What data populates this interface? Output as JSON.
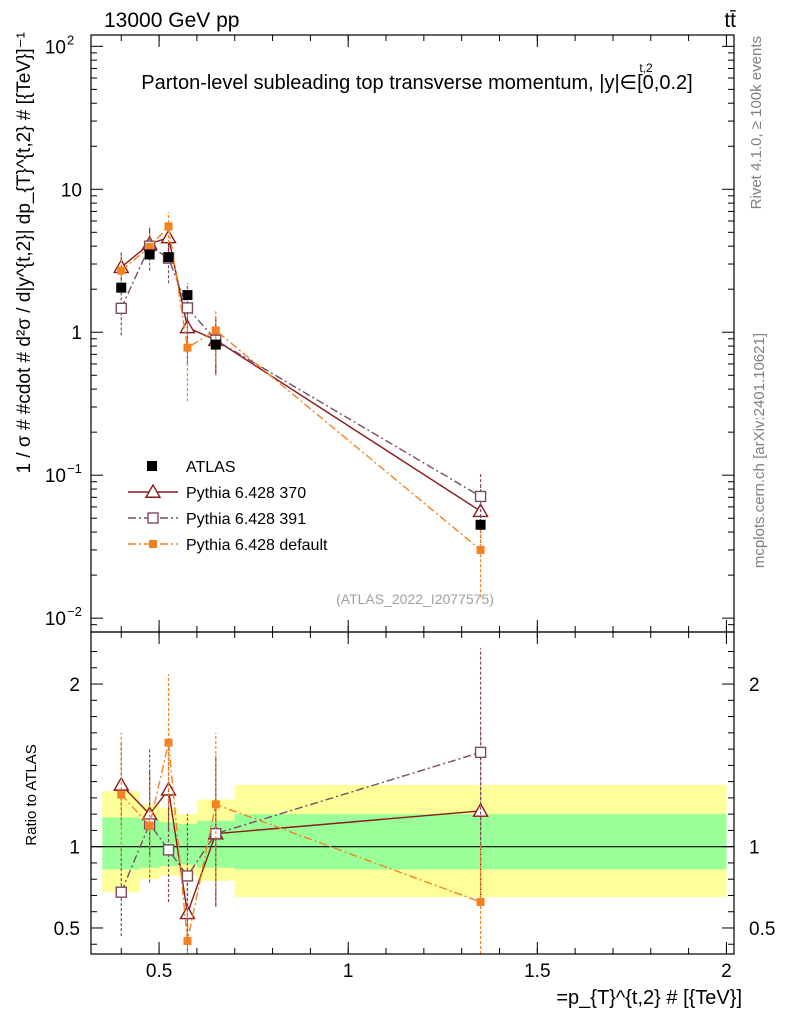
{
  "header": {
    "energy_label": "13000 GeV pp",
    "process_label": "tt̄",
    "title": "Parton-level subleading top transverse momentum, |y|∈[0,0.2]",
    "title_superscript": "t,2",
    "watermark": "(ATLAS_2022_I2077575)",
    "side_label_upper": "Rivet 4.1.0, ≥ 100k events",
    "side_label_lower": "mcplots.cern.ch [arXiv:2401.10621]"
  },
  "chart_data": {
    "type": "line",
    "main": {
      "ylabel": "1 / σ # #cdot # d²σ / d|y^{t,2}| dp_{T}^{t,2} # [{TeV}]⁻¹",
      "yscale": "log",
      "ylim": [
        0.008,
        120
      ],
      "yticks": [
        {
          "value": 0.01,
          "label": "10",
          "exp": "−2"
        },
        {
          "value": 0.1,
          "label": "10",
          "exp": "−1"
        },
        {
          "value": 1,
          "label": "1",
          "exp": ""
        },
        {
          "value": 10,
          "label": "10",
          "exp": ""
        },
        {
          "value": 100,
          "label": "10",
          "exp": "2"
        }
      ]
    },
    "ratio": {
      "ylabel": "Ratio to ATLAS",
      "ylim": [
        0.34,
        2.32
      ],
      "yticks": [
        {
          "value": 0.5,
          "label": "0.5"
        },
        {
          "value": 1,
          "label": "1"
        },
        {
          "value": 2,
          "label": "2"
        }
      ]
    },
    "x": {
      "label": "=p_{T}^{t,2} # [{TeV}]",
      "xlim": [
        0.32,
        2.02
      ],
      "xticks": [
        {
          "value": 0.5,
          "label": "0.5"
        },
        {
          "value": 1,
          "label": "1"
        },
        {
          "value": 1.5,
          "label": "1.5"
        },
        {
          "value": 2,
          "label": "2"
        }
      ]
    },
    "data": {
      "name": "ATLAS",
      "color": "#000000",
      "points": [
        {
          "x": 0.4,
          "y": 2.05,
          "xlo": 0.35,
          "xhi": 0.45
        },
        {
          "x": 0.475,
          "y": 3.5,
          "xlo": 0.45,
          "xhi": 0.5
        },
        {
          "x": 0.525,
          "y": 3.35,
          "xlo": 0.5,
          "xhi": 0.55
        },
        {
          "x": 0.575,
          "y": 1.82,
          "xlo": 0.55,
          "xhi": 0.6
        },
        {
          "x": 0.65,
          "y": 0.82,
          "xlo": 0.6,
          "xhi": 0.7
        },
        {
          "x": 1.35,
          "y": 0.045,
          "xlo": 0.7,
          "xhi": 2.0
        }
      ],
      "uncertainty_bands": {
        "stat": [
          {
            "xlo": 0.35,
            "xhi": 0.45,
            "lo": 0.86,
            "hi": 1.18
          },
          {
            "xlo": 0.45,
            "xhi": 0.5,
            "lo": 0.87,
            "hi": 1.17
          },
          {
            "xlo": 0.5,
            "xhi": 0.55,
            "lo": 0.88,
            "hi": 1.15
          },
          {
            "xlo": 0.55,
            "xhi": 0.6,
            "lo": 0.89,
            "hi": 1.14
          },
          {
            "xlo": 0.6,
            "xhi": 0.7,
            "lo": 0.87,
            "hi": 1.16
          },
          {
            "xlo": 0.7,
            "xhi": 2.0,
            "lo": 0.86,
            "hi": 1.2
          }
        ],
        "total": [
          {
            "xlo": 0.35,
            "xhi": 0.45,
            "lo": 0.72,
            "hi": 1.34
          },
          {
            "xlo": 0.45,
            "xhi": 0.5,
            "lo": 0.8,
            "hi": 1.26
          },
          {
            "xlo": 0.5,
            "xhi": 0.55,
            "lo": 0.82,
            "hi": 1.24
          },
          {
            "xlo": 0.55,
            "xhi": 0.6,
            "lo": 0.82,
            "hi": 1.2
          },
          {
            "xlo": 0.6,
            "xhi": 0.7,
            "lo": 0.79,
            "hi": 1.29
          },
          {
            "xlo": 0.7,
            "xhi": 2.0,
            "lo": 0.69,
            "hi": 1.38
          }
        ]
      }
    },
    "series": [
      {
        "name": "Pythia 6.428 370",
        "color": "#8b1a1a",
        "marker": "triangle-open",
        "dash": "solid",
        "points": [
          {
            "x": 0.4,
            "y": 2.85,
            "lo": 2.3,
            "hi": 3.6
          },
          {
            "x": 0.475,
            "y": 4.15,
            "lo": 3.3,
            "hi": 5.2
          },
          {
            "x": 0.525,
            "y": 4.6,
            "lo": 3.7,
            "hi": 5.8
          },
          {
            "x": 0.575,
            "y": 1.08,
            "lo": 0.75,
            "hi": 1.5
          },
          {
            "x": 0.65,
            "y": 0.88,
            "lo": 0.52,
            "hi": 1.3
          },
          {
            "x": 1.35,
            "y": 0.056,
            "lo": 0.031,
            "hi": 0.083
          }
        ],
        "ratio": [
          {
            "x": 0.4,
            "y": 1.38,
            "lo": 1.13,
            "hi": 1.65
          },
          {
            "x": 0.475,
            "y": 1.2,
            "lo": 0.95,
            "hi": 1.46
          },
          {
            "x": 0.525,
            "y": 1.35,
            "lo": 1.1,
            "hi": 1.62
          },
          {
            "x": 0.575,
            "y": 0.59,
            "lo": 0.42,
            "hi": 0.84
          },
          {
            "x": 0.65,
            "y": 1.08,
            "lo": 0.64,
            "hi": 1.56
          },
          {
            "x": 1.35,
            "y": 1.22,
            "lo": 0.67,
            "hi": 1.72
          }
        ]
      },
      {
        "name": "Pythia 6.428 391",
        "color": "#7b4a63",
        "marker": "square-open",
        "dash": "dashdot",
        "points": [
          {
            "x": 0.4,
            "y": 1.47,
            "lo": 0.95,
            "hi": 2.1
          },
          {
            "x": 0.475,
            "y": 4.0,
            "lo": 2.7,
            "hi": 5.6
          },
          {
            "x": 0.525,
            "y": 3.3,
            "lo": 2.2,
            "hi": 4.6
          },
          {
            "x": 0.575,
            "y": 1.48,
            "lo": 0.6,
            "hi": 2.2
          },
          {
            "x": 0.65,
            "y": 0.88,
            "lo": 0.5,
            "hi": 1.3
          },
          {
            "x": 1.35,
            "y": 0.071,
            "lo": 0.04,
            "hi": 0.103
          }
        ],
        "ratio": [
          {
            "x": 0.4,
            "y": 0.72,
            "lo": 0.45,
            "hi": 1.0
          },
          {
            "x": 0.475,
            "y": 1.14,
            "lo": 0.78,
            "hi": 1.6
          },
          {
            "x": 0.525,
            "y": 0.98,
            "lo": 0.66,
            "hi": 1.35
          },
          {
            "x": 0.575,
            "y": 0.82,
            "lo": 0.36,
            "hi": 1.2
          },
          {
            "x": 0.65,
            "y": 1.08,
            "lo": 0.63,
            "hi": 1.56
          },
          {
            "x": 1.35,
            "y": 1.58,
            "lo": 0.92,
            "hi": 2.22
          }
        ]
      },
      {
        "name": "Pythia 6.428 default",
        "color": "#f58220",
        "marker": "square-filled",
        "dash": "dashdot",
        "points": [
          {
            "x": 0.4,
            "y": 2.7,
            "lo": 1.9,
            "hi": 3.5
          },
          {
            "x": 0.475,
            "y": 3.95,
            "lo": 2.9,
            "hi": 5.1
          },
          {
            "x": 0.525,
            "y": 5.5,
            "lo": 4.2,
            "hi": 6.9
          },
          {
            "x": 0.575,
            "y": 0.78,
            "lo": 0.33,
            "hi": 1.2
          },
          {
            "x": 0.65,
            "y": 1.03,
            "lo": 0.6,
            "hi": 1.4
          },
          {
            "x": 1.35,
            "y": 0.03,
            "lo": 0.014,
            "hi": 0.046
          }
        ],
        "ratio": [
          {
            "x": 0.4,
            "y": 1.32,
            "lo": 0.95,
            "hi": 1.7
          },
          {
            "x": 0.475,
            "y": 1.13,
            "lo": 0.84,
            "hi": 1.46
          },
          {
            "x": 0.525,
            "y": 1.64,
            "lo": 1.25,
            "hi": 2.06
          },
          {
            "x": 0.575,
            "y": 0.42,
            "lo": 0.19,
            "hi": 0.66
          },
          {
            "x": 0.65,
            "y": 1.26,
            "lo": 0.74,
            "hi": 1.7
          },
          {
            "x": 1.35,
            "y": 0.66,
            "lo": 0.31,
            "hi": 1.02
          }
        ]
      }
    ]
  }
}
